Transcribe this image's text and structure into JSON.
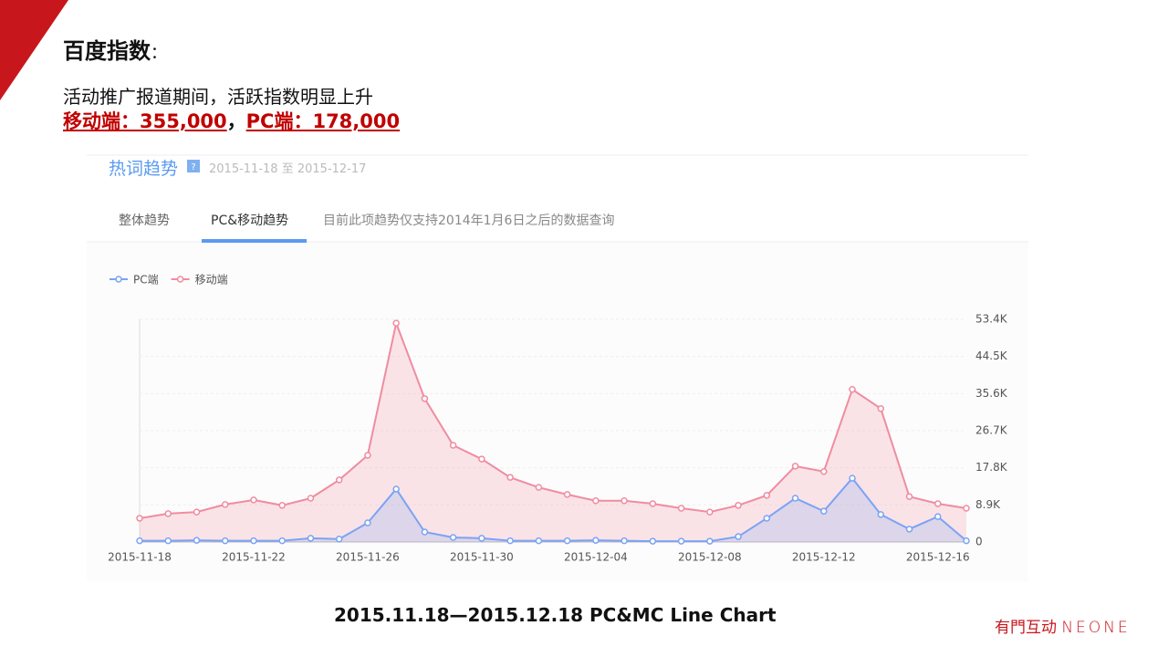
{
  "slide": {
    "title": "百度指数",
    "title_colon": "：",
    "subtitle": "活动推广报道期间，活跃指数明显上升",
    "highlight_mobile": "移动端：355,000",
    "highlight_sep": "，",
    "highlight_pc": "PC端：178,000",
    "widget_title": "热词趋势",
    "widget_help": "?",
    "date_from": "2015-11-18",
    "date_to_word": "至",
    "date_to": "2015-12-17",
    "tabs": [
      "整体趋势",
      "PC&移动趋势"
    ],
    "tab_note": "目前此项趋势仅支持2014年1月6日之后的数据查询",
    "caption": "2015.11.18—2015.12.18 PC&MC Line Chart",
    "logo_cn": "有門互动",
    "logo_en": "NEONE"
  },
  "chart_data": {
    "type": "line",
    "categories": [
      "2015-11-18",
      null,
      null,
      null,
      "2015-11-22",
      null,
      null,
      null,
      "2015-11-26",
      null,
      null,
      null,
      "2015-11-30",
      null,
      null,
      null,
      "2015-12-04",
      null,
      null,
      null,
      "2015-12-08",
      null,
      null,
      null,
      "2015-12-12",
      null,
      null,
      null,
      "2015-12-16",
      null
    ],
    "series": [
      {
        "name": "PC端",
        "color": "#7aa3f5",
        "values": [
          300,
          300,
          400,
          300,
          300,
          300,
          900,
          700,
          4600,
          12700,
          2400,
          1100,
          900,
          300,
          300,
          300,
          400,
          300,
          200,
          200,
          200,
          1300,
          5700,
          10500,
          7400,
          15300,
          6600,
          3100,
          6100,
          300
        ]
      },
      {
        "name": "移动端",
        "color": "#f08ca0",
        "values": [
          5700,
          6800,
          7200,
          9000,
          10100,
          8800,
          10500,
          14900,
          20800,
          52500,
          34400,
          23200,
          19900,
          15500,
          13100,
          11400,
          9900,
          9900,
          9200,
          8100,
          7200,
          8800,
          11200,
          18200,
          16900,
          36600,
          32000,
          10900,
          9200,
          8100
        ]
      }
    ],
    "ylim": [
      0,
      53400
    ],
    "yticks": [
      0,
      {
        "value": 8900,
        "label": "8.9K"
      },
      {
        "value": 17800,
        "label": "17.8K"
      },
      {
        "value": 26700,
        "label": "26.7K"
      },
      {
        "value": 35600,
        "label": "35.6K"
      },
      {
        "value": 44500,
        "label": "44.5K"
      },
      {
        "value": 53400,
        "label": "53.4K"
      }
    ],
    "grid": true,
    "legend": "top-left",
    "area": true
  }
}
